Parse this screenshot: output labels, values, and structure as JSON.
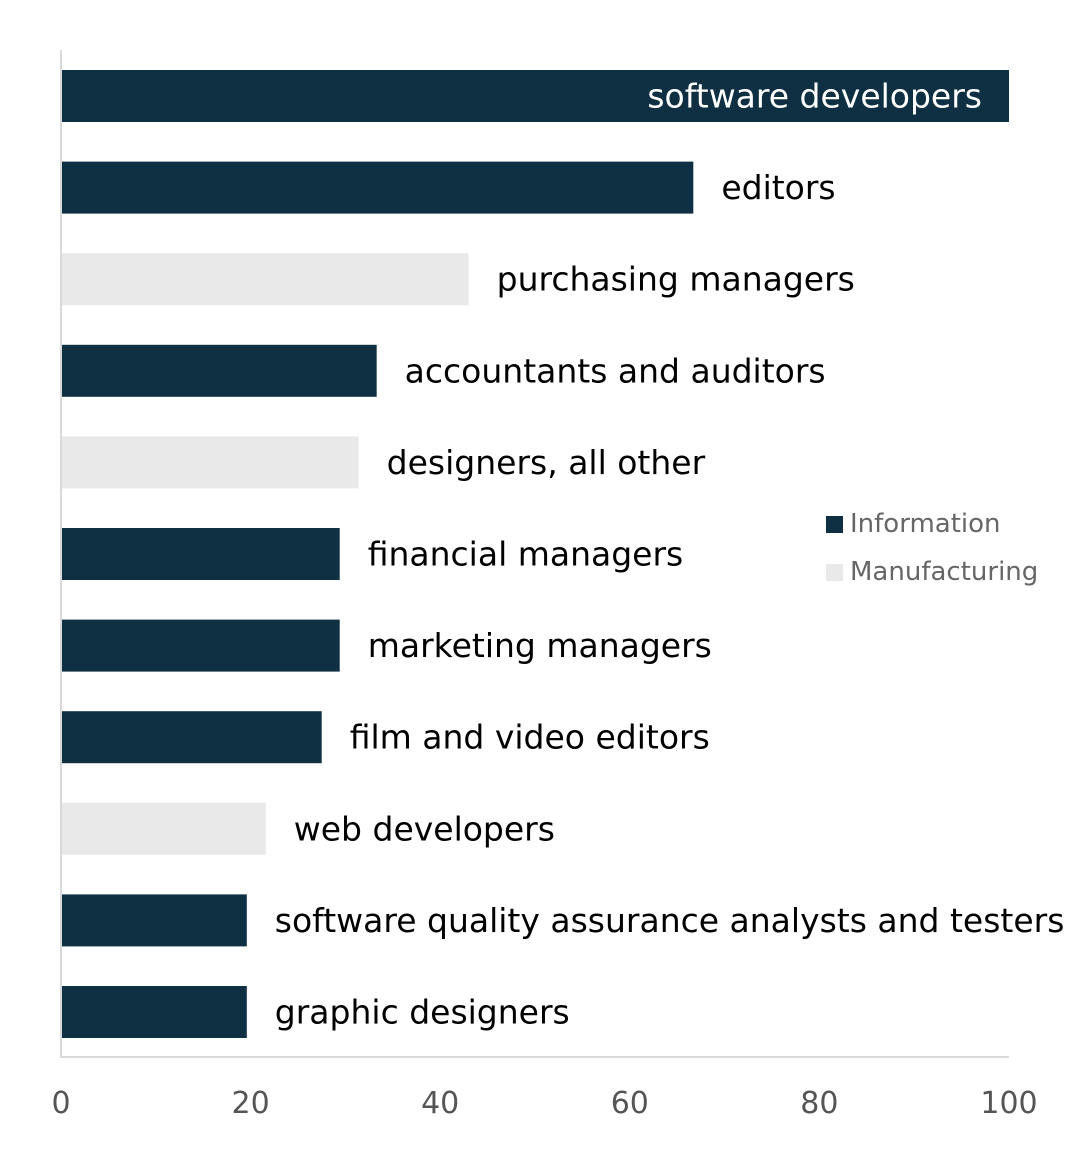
{
  "chart_data": {
    "type": "bar",
    "orientation": "horizontal",
    "categories": [
      "software developers",
      "editors",
      "purchasing managers",
      "accountants and auditors",
      "designers, all other",
      "financial managers",
      "marketing managers",
      "film and video editors",
      "web developers",
      "software quality assurance analysts and testers",
      "graphic designers"
    ],
    "values": [
      100,
      66.7,
      43,
      33.3,
      31.4,
      29.4,
      29.4,
      27.5,
      21.6,
      19.6,
      19.6
    ],
    "industry": [
      "Information",
      "Information",
      "Manufacturing",
      "Information",
      "Manufacturing",
      "Information",
      "Information",
      "Information",
      "Manufacturing",
      "Information",
      "Information"
    ],
    "legend": [
      {
        "name": "Information",
        "color": "#0f3042"
      },
      {
        "name": "Manufacturing",
        "color": "#e9e9e9"
      }
    ],
    "legend_placement": "right",
    "xlim": [
      0,
      100
    ],
    "xticks": [
      0,
      20,
      40,
      60,
      80,
      100
    ],
    "title": "",
    "xlabel": "",
    "ylabel": "",
    "grid": false,
    "label_colors": {
      "inside": "#ffffff",
      "outside": "#000000"
    }
  }
}
